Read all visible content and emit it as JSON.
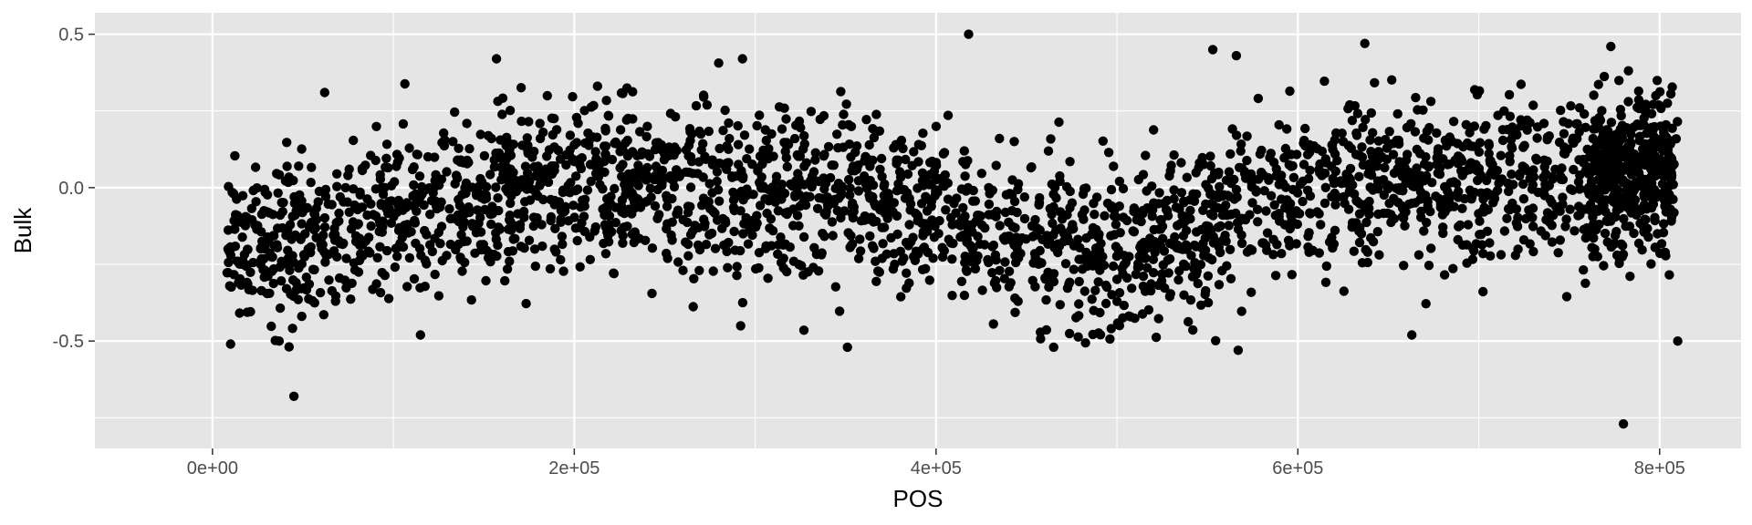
{
  "chart_data": {
    "type": "scatter",
    "title": "",
    "xlabel": "POS",
    "ylabel": "Bulk",
    "xlim": [
      -65000,
      845000
    ],
    "ylim": [
      -0.85,
      0.57
    ],
    "x_ticks": [
      0,
      200000,
      400000,
      600000,
      800000
    ],
    "x_tick_labels": [
      "0e+00",
      "2e+05",
      "4e+05",
      "6e+05",
      "8e+05"
    ],
    "y_ticks": [
      -0.5,
      0.0,
      0.5
    ],
    "y_tick_labels": [
      "-0.5",
      "0.0",
      "0.5"
    ],
    "grid": true,
    "legend": "none",
    "colors": {
      "panel": "#e5e5e5",
      "grid": "#ffffff",
      "point": "#000000"
    },
    "trend_knots": {
      "x": [
        5000,
        50000,
        100000,
        150000,
        200000,
        250000,
        300000,
        350000,
        400000,
        450000,
        500000,
        550000,
        600000,
        650000,
        700000,
        750000,
        810000
      ],
      "y": [
        -0.22,
        -0.17,
        -0.1,
        -0.03,
        0.02,
        0.01,
        -0.04,
        -0.01,
        -0.07,
        -0.18,
        -0.22,
        -0.1,
        0.0,
        0.02,
        0.0,
        0.03,
        0.05
      ]
    },
    "noise_sd": 0.13,
    "n_points": 3000,
    "x_range": [
      8000,
      810000
    ],
    "points_outliers": [
      {
        "x": 45000,
        "y": -0.68
      },
      {
        "x": 418000,
        "y": 0.5
      },
      {
        "x": 637000,
        "y": 0.47
      },
      {
        "x": 780000,
        "y": -0.77
      },
      {
        "x": 810000,
        "y": -0.5
      },
      {
        "x": 157000,
        "y": 0.42
      },
      {
        "x": 293000,
        "y": 0.42
      },
      {
        "x": 62000,
        "y": 0.31
      },
      {
        "x": 553000,
        "y": 0.45
      },
      {
        "x": 566000,
        "y": 0.43
      },
      {
        "x": 773000,
        "y": 0.46
      },
      {
        "x": 351000,
        "y": -0.52
      },
      {
        "x": 567000,
        "y": -0.53
      },
      {
        "x": 10000,
        "y": -0.51
      },
      {
        "x": 115000,
        "y": -0.48
      },
      {
        "x": 663000,
        "y": -0.48
      },
      {
        "x": 465000,
        "y": -0.52
      },
      {
        "x": 292000,
        "y": -0.45
      }
    ]
  }
}
